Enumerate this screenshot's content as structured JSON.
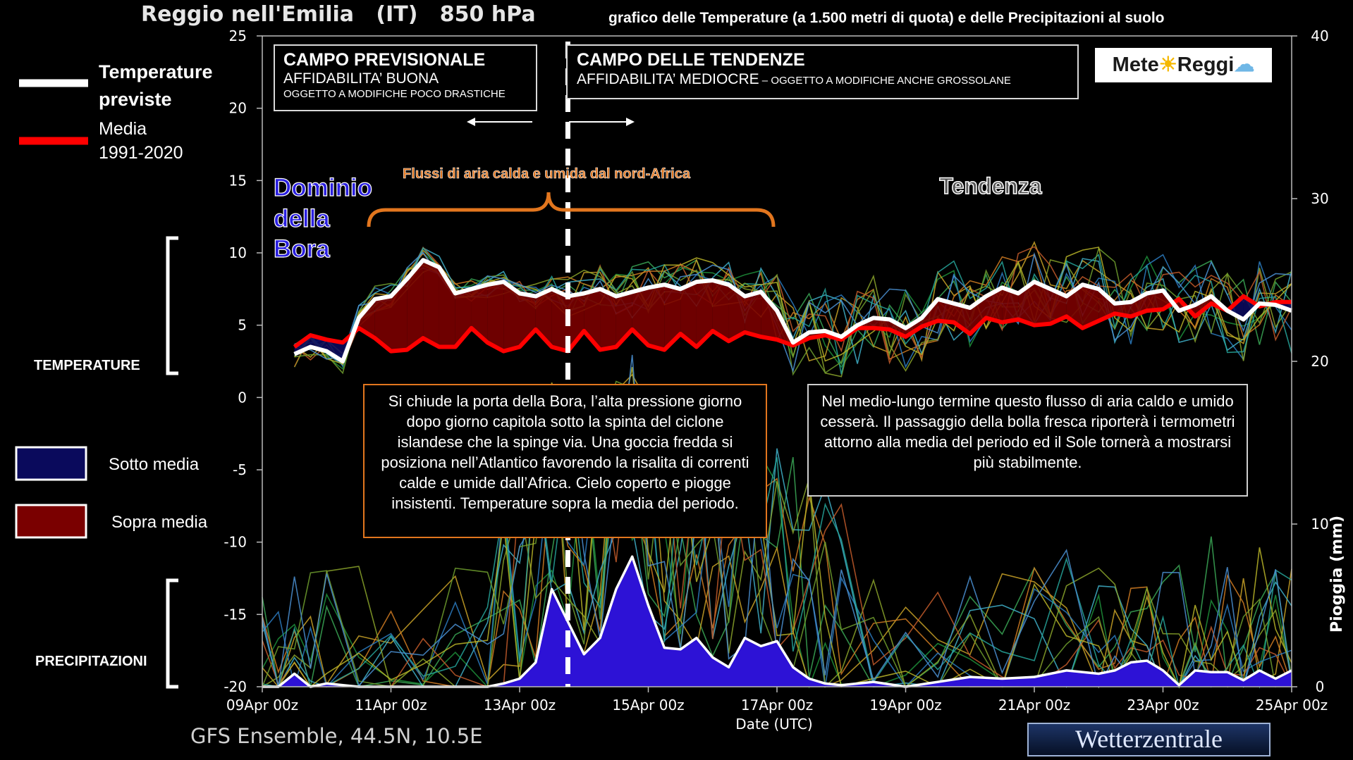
{
  "header": {
    "location": "Reggio nell'Emilia   (IT)   850 hPa",
    "subtitle": "grafico delle Temperature  (a 1.500 metri di quota) e delle Precipitazioni al suolo"
  },
  "footer": {
    "model": "GFS Ensemble, 44.5N, 10.5E",
    "brand": "Wetterzentrale"
  },
  "logo": {
    "text_a": "Mete",
    "text_b": "Reggi"
  },
  "legend": {
    "forecast_label_1": "Temperature",
    "forecast_label_2": "previste",
    "avg_label_1": "Media",
    "avg_label_2": "1991-2020",
    "below_label": "Sotto media",
    "above_label": "Sopra media",
    "temp_section": "TEMPERATURE",
    "precip_section": "PRECIPITAZIONI"
  },
  "boxes": {
    "forecast_title": "CAMPO PREVISIONALE",
    "forecast_reliability": "AFFIDABILITA’ BUONA",
    "forecast_note": "OGGETTO A MODIFICHE POCO DRASTICHE",
    "trend_title": "CAMPO DELLE TENDENZE",
    "trend_reliability": "AFFIDABILITA’ MEDIOCRE",
    "trend_note": " – OGGETTO A MODIFICHE ANCHE GROSSOLANE"
  },
  "annotations": {
    "bora_1": "Dominio",
    "bora_2": "della",
    "bora_3": "Bora",
    "flow": "Flussi di aria calda e umida dal nord-Africa",
    "trend": "Tendenza",
    "text_left": "Si chiude la porta della Bora, l’alta pressione giorno dopo giorno capitola sotto la spinta del ciclone islandese che la spinge via. Una goccia fredda si posiziona nell’Atlantico favorendo la risalita di correnti calde e umide dall’Africa. Cielo coperto e piogge insistenti. Temperature sopra la media del periodo.",
    "text_right": "Nel medio-lungo termine questo flusso di aria caldo e umido cesserà. Il passaggio della bolla fresca riporterà i termometri attorno alla media del periodo ed il Sole tornerà a mostrarsi più stabilmente."
  },
  "colors": {
    "forecast": "#ffffff",
    "average": "#ff0000",
    "below": "#0a0a5c",
    "above": "#7a0000",
    "precip": "#2d12d6",
    "flow": "#e2761e",
    "bora": "#2a1fe0"
  },
  "chart_data": {
    "type": "line",
    "xlabel": "Date (UTC)",
    "ylabel": "",
    "y2label": "Pioggia (mm)",
    "ylim": [
      -20,
      25
    ],
    "y2lim": [
      0,
      40
    ],
    "yticks": [
      25,
      20,
      15,
      10,
      5,
      0,
      -5,
      -10,
      -15,
      -20
    ],
    "y2ticks": [
      40,
      30,
      20,
      10,
      0
    ],
    "xlim": [
      0,
      16
    ],
    "xticks": [
      {
        "x": 0,
        "label": "09Apr 00z"
      },
      {
        "x": 2,
        "label": "11Apr 00z"
      },
      {
        "x": 4,
        "label": "13Apr 00z"
      },
      {
        "x": 6,
        "label": "15Apr 00z"
      },
      {
        "x": 8,
        "label": "17Apr 00z"
      },
      {
        "x": 10,
        "label": "19Apr 00z"
      },
      {
        "x": 12,
        "label": "21Apr 00z"
      },
      {
        "x": 14,
        "label": "23Apr 00z"
      },
      {
        "x": 16,
        "label": "25Apr 00z"
      }
    ],
    "divider_x": 4.75,
    "series": [
      {
        "name": "Temperature previste",
        "x": [
          0.5,
          0.75,
          1,
          1.25,
          1.5,
          1.75,
          2,
          2.25,
          2.5,
          2.75,
          3,
          3.25,
          3.5,
          3.75,
          4,
          4.25,
          4.5,
          4.75,
          5,
          5.25,
          5.5,
          5.75,
          6,
          6.25,
          6.5,
          6.75,
          7,
          7.25,
          7.5,
          7.75,
          8,
          8.25,
          8.5,
          8.75,
          9,
          9.25,
          9.5,
          9.75,
          10,
          10.25,
          10.5,
          10.75,
          11,
          11.25,
          11.5,
          11.75,
          12,
          12.25,
          12.5,
          12.75,
          13,
          13.25,
          13.5,
          13.75,
          14,
          14.25,
          14.5,
          14.75,
          15,
          15.25,
          15.5,
          15.75,
          16
        ],
        "values": [
          3,
          3.5,
          3.2,
          2.5,
          5.5,
          6.8,
          7,
          8.2,
          9.5,
          9,
          7.2,
          7.5,
          7.8,
          8,
          7.2,
          7,
          7.5,
          7,
          7.2,
          7.5,
          7,
          7.3,
          7.6,
          7.8,
          7.5,
          8,
          8.1,
          7.8,
          7,
          7.3,
          6,
          3.8,
          4.5,
          4.6,
          4.2,
          5,
          5.5,
          5.4,
          4.8,
          5.5,
          6.8,
          6.5,
          6.2,
          7,
          7.6,
          7.2,
          8,
          7.5,
          7,
          7.8,
          7.5,
          6.5,
          6.6,
          7.2,
          7.4,
          6,
          6.4,
          7,
          6,
          5.4,
          6.5,
          6.4,
          6
        ]
      },
      {
        "name": "Media 1991-2020",
        "x": [
          0.5,
          0.75,
          1,
          1.25,
          1.5,
          1.75,
          2,
          2.25,
          2.5,
          2.75,
          3,
          3.25,
          3.5,
          3.75,
          4,
          4.25,
          4.5,
          4.75,
          5,
          5.25,
          5.5,
          5.75,
          6,
          6.25,
          6.5,
          6.75,
          7,
          7.25,
          7.5,
          7.75,
          8,
          8.25,
          8.5,
          8.75,
          9,
          9.25,
          9.5,
          9.75,
          10,
          10.25,
          10.5,
          10.75,
          11,
          11.25,
          11.5,
          11.75,
          12,
          12.25,
          12.5,
          12.75,
          13,
          13.25,
          13.5,
          13.75,
          14,
          14.25,
          14.5,
          14.75,
          15,
          15.25,
          15.5,
          15.75,
          16
        ],
        "values": [
          3.5,
          4.3,
          4,
          3.8,
          4.8,
          4.1,
          3.2,
          3.3,
          4.1,
          3.5,
          3.5,
          4.8,
          3.8,
          3.2,
          3.5,
          4.7,
          3.5,
          3.2,
          4.6,
          3.3,
          3.5,
          4.7,
          3.6,
          3.3,
          4.4,
          3.5,
          4.6,
          3.9,
          4.5,
          4.2,
          4,
          3.6,
          4.1,
          4.3,
          4,
          4.8,
          4.8,
          4.7,
          4.2,
          4.9,
          5.3,
          5.2,
          4.4,
          5.5,
          5.2,
          5.4,
          5,
          5.1,
          5.6,
          4.8,
          5.3,
          5.8,
          5.6,
          6,
          6.1,
          6.8,
          5.6,
          6.5,
          6,
          7,
          6.3,
          6.6,
          6.6
        ]
      },
      {
        "name": "Pioggia (mm)",
        "axis": "right",
        "x": [
          0,
          0.25,
          0.5,
          0.75,
          1,
          1.5,
          2,
          2.5,
          3,
          3.5,
          3.75,
          4,
          4.25,
          4.5,
          4.75,
          5,
          5.25,
          5.5,
          5.75,
          6,
          6.25,
          6.5,
          6.75,
          7,
          7.25,
          7.5,
          7.75,
          8,
          8.25,
          8.5,
          8.75,
          9,
          9.5,
          10,
          10.5,
          11,
          11.5,
          12,
          12.5,
          13,
          13.25,
          13.5,
          13.75,
          14,
          14.25,
          14.5,
          14.75,
          15,
          15.25,
          15.5,
          15.75,
          16
        ],
        "values": [
          0,
          0,
          0.8,
          0,
          0.2,
          0,
          0,
          0,
          0,
          0,
          0.2,
          0.5,
          1.5,
          6,
          4,
          2,
          3,
          6,
          8,
          5,
          2.4,
          2.3,
          3,
          1.8,
          1.2,
          3,
          2.5,
          2.8,
          1.2,
          0.5,
          0.2,
          0.1,
          0.3,
          0,
          0.3,
          0.6,
          0.5,
          0.6,
          1,
          0.8,
          1,
          1.5,
          1.6,
          1,
          0.1,
          1,
          0.9,
          0.9,
          0.4,
          1,
          0.5,
          1
        ]
      }
    ]
  }
}
